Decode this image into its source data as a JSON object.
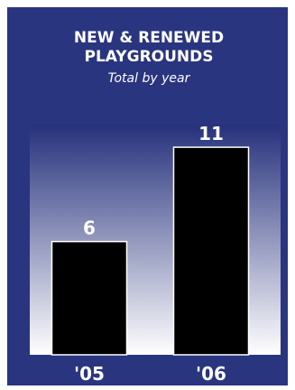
{
  "chart_data": {
    "type": "bar",
    "title": "NEW & RENEWED PLAYGROUNDS",
    "subtitle": "Total by year",
    "categories": [
      "'05",
      "'06"
    ],
    "values": [
      6,
      11
    ],
    "data_labels": [
      "6",
      "11"
    ],
    "xlabel": "",
    "ylabel": "",
    "ylim": [
      0,
      12.4
    ],
    "grid": false,
    "legend": "none",
    "colors": {
      "frame": "#2a3580",
      "gradient_top": "#26317c",
      "gradient_bottom": "#ffffff",
      "bar": "#000000",
      "bar_outline": "#ffffff",
      "text": "#ffffff"
    }
  }
}
